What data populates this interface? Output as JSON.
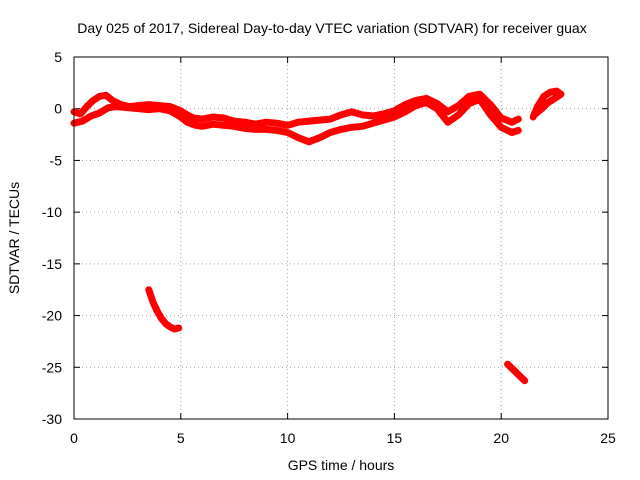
{
  "chart_data": {
    "type": "scatter",
    "title": "Day 025 of 2017, Sidereal Day-to-day VTEC variation (SDTVAR) for receiver guax",
    "xlabel": "GPS time / hours",
    "ylabel": "SDTVAR / TECUs",
    "xlim": [
      0,
      25
    ],
    "ylim": [
      -30,
      5
    ],
    "xticks": [
      0,
      5,
      10,
      15,
      20,
      25
    ],
    "yticks": [
      5,
      0,
      -5,
      -10,
      -15,
      -20,
      -25,
      -30
    ],
    "grid": true,
    "legend": "none",
    "color": "#ff0000",
    "series": [
      {
        "name": "main-band-upper",
        "points": [
          [
            0.0,
            -0.3
          ],
          [
            0.3,
            -0.5
          ],
          [
            0.6,
            0.2
          ],
          [
            0.9,
            0.8
          ],
          [
            1.2,
            1.2
          ],
          [
            1.5,
            1.3
          ],
          [
            1.8,
            0.8
          ],
          [
            2.2,
            0.4
          ],
          [
            2.6,
            0.2
          ],
          [
            3.0,
            0.3
          ],
          [
            3.5,
            0.4
          ],
          [
            4.0,
            0.3
          ],
          [
            4.5,
            0.2
          ],
          [
            5.0,
            -0.2
          ],
          [
            5.3,
            -0.6
          ],
          [
            5.6,
            -0.9
          ],
          [
            6.0,
            -1.0
          ],
          [
            6.5,
            -0.8
          ],
          [
            7.0,
            -0.9
          ],
          [
            7.5,
            -1.2
          ],
          [
            8.0,
            -1.3
          ],
          [
            8.5,
            -1.5
          ],
          [
            9.0,
            -1.3
          ],
          [
            9.5,
            -1.4
          ],
          [
            10.0,
            -1.6
          ],
          [
            10.5,
            -1.3
          ],
          [
            11.0,
            -1.2
          ],
          [
            11.5,
            -1.1
          ],
          [
            12.0,
            -1.0
          ],
          [
            12.5,
            -0.6
          ],
          [
            13.0,
            -0.3
          ],
          [
            13.5,
            -0.6
          ],
          [
            14.0,
            -0.7
          ],
          [
            14.5,
            -0.5
          ],
          [
            15.0,
            -0.2
          ],
          [
            15.5,
            0.4
          ],
          [
            16.0,
            0.8
          ],
          [
            16.5,
            1.0
          ],
          [
            17.0,
            0.5
          ],
          [
            17.5,
            -0.3
          ],
          [
            18.0,
            0.3
          ],
          [
            18.5,
            1.2
          ],
          [
            19.0,
            1.4
          ],
          [
            19.5,
            0.4
          ],
          [
            20.0,
            -0.9
          ],
          [
            20.5,
            -1.3
          ],
          [
            20.8,
            -1.0
          ]
        ]
      },
      {
        "name": "main-band-lower",
        "points": [
          [
            0.0,
            -1.4
          ],
          [
            0.4,
            -1.2
          ],
          [
            0.8,
            -0.7
          ],
          [
            1.2,
            -0.4
          ],
          [
            1.6,
            0.1
          ],
          [
            2.0,
            0.2
          ],
          [
            2.5,
            0.1
          ],
          [
            3.0,
            0.0
          ],
          [
            3.5,
            -0.1
          ],
          [
            4.0,
            0.0
          ],
          [
            4.5,
            -0.2
          ],
          [
            5.0,
            -0.8
          ],
          [
            5.3,
            -1.3
          ],
          [
            5.7,
            -1.6
          ],
          [
            6.0,
            -1.7
          ],
          [
            6.5,
            -1.5
          ],
          [
            7.0,
            -1.6
          ],
          [
            7.5,
            -1.7
          ],
          [
            8.0,
            -1.9
          ],
          [
            8.5,
            -2.0
          ],
          [
            9.0,
            -2.0
          ],
          [
            9.5,
            -2.1
          ],
          [
            10.0,
            -2.3
          ],
          [
            10.5,
            -2.8
          ],
          [
            11.0,
            -3.2
          ],
          [
            11.5,
            -2.8
          ],
          [
            12.0,
            -2.3
          ],
          [
            12.5,
            -2.0
          ],
          [
            13.0,
            -1.8
          ],
          [
            13.5,
            -1.7
          ],
          [
            14.0,
            -1.4
          ],
          [
            14.5,
            -1.1
          ],
          [
            15.0,
            -0.8
          ],
          [
            15.5,
            -0.3
          ],
          [
            16.0,
            0.3
          ],
          [
            16.5,
            0.6
          ],
          [
            17.0,
            0.0
          ],
          [
            17.5,
            -1.3
          ],
          [
            18.0,
            -0.6
          ],
          [
            18.5,
            0.5
          ],
          [
            19.0,
            0.9
          ],
          [
            19.5,
            -0.6
          ],
          [
            20.0,
            -1.8
          ],
          [
            20.5,
            -2.3
          ],
          [
            20.8,
            -2.1
          ]
        ]
      },
      {
        "name": "late-segment",
        "points": [
          [
            21.5,
            -0.8
          ],
          [
            21.7,
            0.2
          ],
          [
            22.0,
            1.2
          ],
          [
            22.3,
            1.6
          ],
          [
            22.6,
            1.7
          ],
          [
            22.8,
            1.4
          ],
          [
            22.5,
            1.0
          ],
          [
            22.2,
            0.6
          ],
          [
            21.9,
            0.0
          ],
          [
            21.6,
            -0.5
          ]
        ]
      },
      {
        "name": "outlier-arc-1",
        "points": [
          [
            3.5,
            -17.5
          ],
          [
            3.7,
            -18.7
          ],
          [
            3.9,
            -19.6
          ],
          [
            4.1,
            -20.3
          ],
          [
            4.3,
            -20.8
          ],
          [
            4.5,
            -21.1
          ],
          [
            4.7,
            -21.3
          ],
          [
            4.9,
            -21.2
          ]
        ]
      },
      {
        "name": "outlier-arc-2",
        "points": [
          [
            20.3,
            -24.7
          ],
          [
            20.5,
            -25.1
          ],
          [
            20.7,
            -25.5
          ],
          [
            20.9,
            -25.9
          ],
          [
            21.1,
            -26.3
          ]
        ]
      }
    ]
  }
}
